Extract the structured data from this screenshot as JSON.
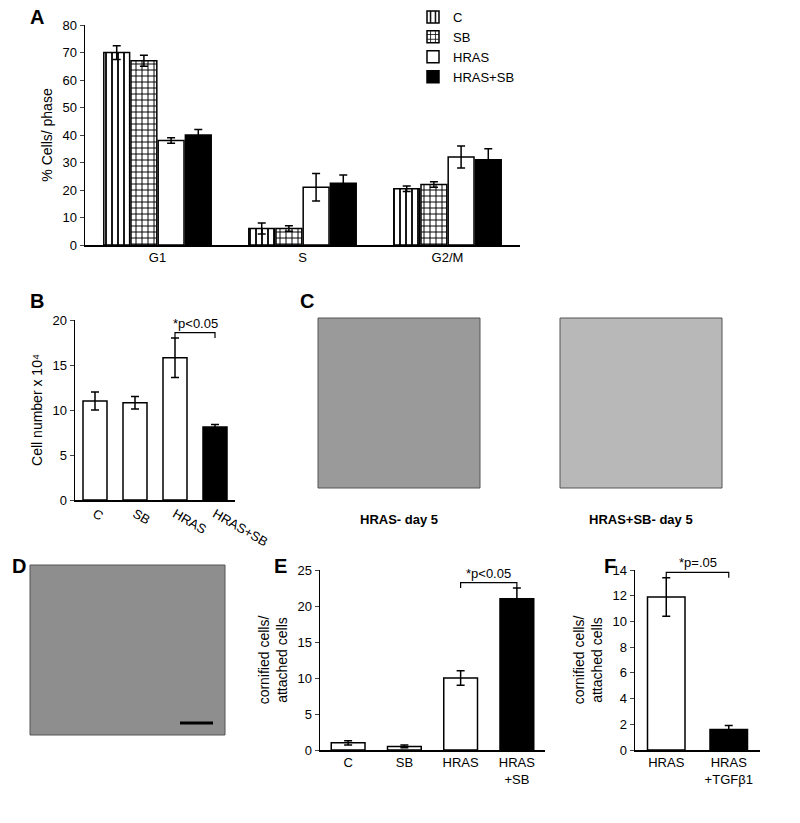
{
  "chart_data": [
    {
      "panel": "A",
      "type": "bar",
      "categories": [
        "G1",
        "S",
        "G2/M"
      ],
      "y_label": "% Cells/ phase",
      "ylim": [
        0,
        80
      ],
      "yticks": [
        0,
        10,
        20,
        30,
        40,
        50,
        60,
        70,
        80
      ],
      "legend": "upper right",
      "series": [
        {
          "name": "C",
          "color": "#ffffff",
          "marker": "stripes",
          "values": [
            70,
            6,
            20.5
          ],
          "errors": [
            2.5,
            2,
            1
          ]
        },
        {
          "name": "SB",
          "color": "#ffffff",
          "marker": "grid",
          "values": [
            67,
            6,
            22
          ],
          "errors": [
            2,
            1,
            1
          ]
        },
        {
          "name": "HRAS",
          "color": "#ffffff",
          "marker": "solid",
          "values": [
            38,
            21,
            32
          ],
          "errors": [
            1,
            5,
            4
          ]
        },
        {
          "name": "HRAS+SB",
          "color": "#000000",
          "marker": "solid",
          "values": [
            40,
            22.5,
            31
          ],
          "errors": [
            2,
            3,
            4
          ]
        }
      ]
    },
    {
      "panel": "B",
      "type": "bar",
      "categories": [
        "C",
        "SB",
        "HRAS",
        "HRAS+SB"
      ],
      "values": [
        11,
        10.8,
        15.8,
        8.1
      ],
      "errors": [
        1,
        0.7,
        2.2,
        0.3
      ],
      "colors": [
        "#ffffff",
        "#ffffff",
        "#ffffff",
        "#000000"
      ],
      "marker": [
        "stripes",
        "grid",
        "solid",
        "solid"
      ],
      "y_label": "Cell number x 10⁴",
      "ylim": [
        0,
        20
      ],
      "yticks": [
        0,
        5,
        10,
        15,
        20
      ],
      "annotations": [
        {
          "text": "*p<0.05",
          "between": [
            "HRAS",
            "HRAS+SB"
          ]
        }
      ]
    },
    {
      "panel": "E",
      "type": "bar",
      "categories": [
        "C",
        "SB",
        "HRAS",
        "HRAS\n+SB"
      ],
      "values": [
        1,
        0.5,
        10,
        21
      ],
      "errors": [
        0.3,
        0.2,
        1,
        1.5
      ],
      "colors": [
        "#ffffff",
        "#ffffff",
        "#ffffff",
        "#000000"
      ],
      "marker": [
        "stripes",
        "grid",
        "solid",
        "solid"
      ],
      "y_label": "cornified cells/\nattached cells",
      "ylim": [
        0,
        25
      ],
      "yticks": [
        0,
        5,
        10,
        15,
        20,
        25
      ],
      "annotations": [
        {
          "text": "*p<0.05",
          "between": [
            "HRAS",
            "HRAS\n+SB"
          ]
        }
      ]
    },
    {
      "panel": "F",
      "type": "bar",
      "categories": [
        "HRAS",
        "HRAS\n+TGFβ1"
      ],
      "values": [
        11.9,
        1.6
      ],
      "errors": [
        1.5,
        0.3
      ],
      "colors": [
        "#ffffff",
        "#000000"
      ],
      "marker": [
        "solid",
        "solid"
      ],
      "y_label": "cornified cells/\nattached cells",
      "ylim": [
        0,
        14
      ],
      "yticks": [
        0,
        2,
        4,
        6,
        8,
        10,
        12,
        14
      ],
      "annotations": [
        {
          "text": "*p=.05",
          "between": [
            "HRAS",
            "HRAS\n+TGFβ1"
          ]
        }
      ]
    }
  ],
  "images": [
    {
      "panel": "C",
      "captions": [
        "HRAS- day 5",
        "HRAS+SB- day 5"
      ]
    },
    {
      "panel": "D"
    }
  ]
}
